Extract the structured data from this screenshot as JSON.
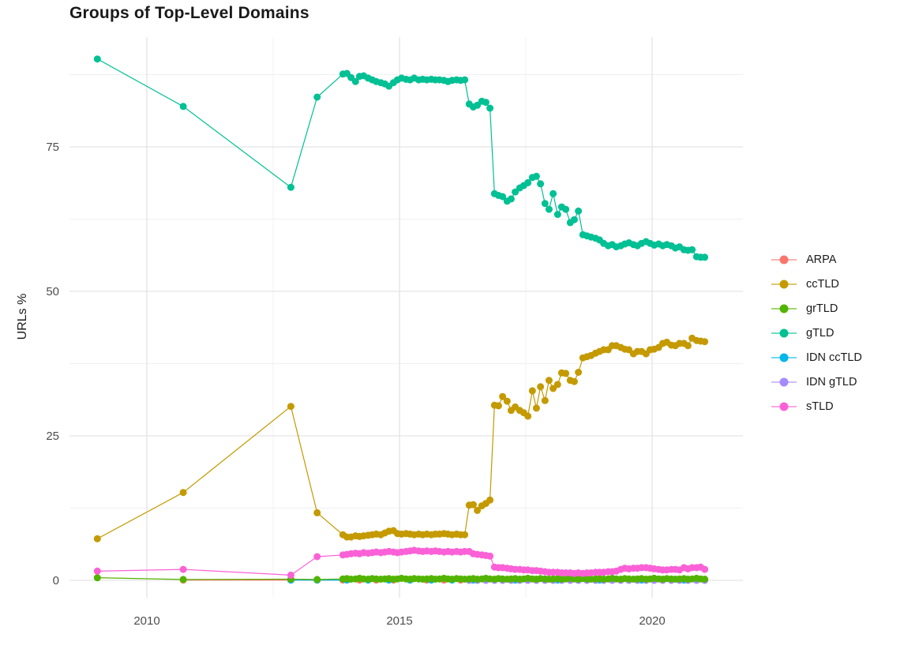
{
  "chart_data": {
    "type": "line",
    "title": "Groups of Top-Level Domains",
    "xlabel": "",
    "ylabel": "URLs %",
    "x_ticks": [
      2010,
      2015,
      2020
    ],
    "x_minor_ticks": [
      2012.5,
      2017.5
    ],
    "y_ticks": [
      0,
      25,
      50,
      75
    ],
    "y_minor_ticks": [
      12.5,
      37.5,
      62.5,
      87.5
    ],
    "xlim": [
      2008.47,
      2021.8
    ],
    "ylim": [
      -3,
      94
    ],
    "grid": true,
    "legend_position": "right",
    "draw_order": [
      "ARPA",
      "IDN ccTLD",
      "IDN gTLD",
      "grTLD",
      "ccTLD",
      "gTLD",
      "sTLD"
    ],
    "x_dense": [
      2013.88,
      2013.96,
      2014.04,
      2014.13,
      2014.21,
      2014.29,
      2014.38,
      2014.46,
      2014.54,
      2014.63,
      2014.71,
      2014.79,
      2014.88,
      2014.96,
      2015.04,
      2015.13,
      2015.21,
      2015.29,
      2015.38,
      2015.46,
      2015.54,
      2015.63,
      2015.71,
      2015.79,
      2015.88,
      2015.96,
      2016.04,
      2016.13,
      2016.21,
      2016.29,
      2016.38,
      2016.46,
      2016.54,
      2016.63,
      2016.71,
      2016.79,
      2016.88,
      2016.96,
      2017.04,
      2017.13,
      2017.21,
      2017.29,
      2017.38,
      2017.46,
      2017.54,
      2017.63,
      2017.71,
      2017.79,
      2017.88,
      2017.96,
      2018.04,
      2018.13,
      2018.21,
      2018.29,
      2018.38,
      2018.46,
      2018.54,
      2018.63,
      2018.71,
      2018.79,
      2018.88,
      2018.96,
      2019.04,
      2019.13,
      2019.21,
      2019.29,
      2019.38,
      2019.46,
      2019.54,
      2019.63,
      2019.71,
      2019.79,
      2019.88,
      2019.96,
      2020.04,
      2020.13,
      2020.21,
      2020.29,
      2020.38,
      2020.46,
      2020.54,
      2020.63,
      2020.71,
      2020.79,
      2020.88,
      2020.96,
      2021.04
    ],
    "series": [
      {
        "name": "ARPA",
        "color": "#F8766D",
        "points": [
          [
            2010.72,
            0.05
          ],
          [
            2012.85,
            0.05
          ],
          [
            2013.37,
            0.05
          ],
          [
            2013.88,
            0.05
          ],
          [
            2014.21,
            0.05
          ],
          [
            2014.54,
            0.05
          ],
          [
            2014.88,
            0.05
          ],
          [
            2015.21,
            0.05
          ],
          [
            2015.54,
            0.05
          ],
          [
            2015.88,
            0.05
          ],
          [
            2016.21,
            0.05
          ]
        ]
      },
      {
        "name": "ccTLD",
        "color": "#C49A00",
        "points": [
          [
            2009.02,
            7.2
          ],
          [
            2010.72,
            15.2
          ],
          [
            2012.85,
            30.1
          ],
          [
            2013.37,
            11.7
          ]
        ],
        "y_dense": [
          7.9,
          7.5,
          7.5,
          7.7,
          7.6,
          7.7,
          7.8,
          7.9,
          8.0,
          7.9,
          8.2,
          8.5,
          8.6,
          8.1,
          8.0,
          8.1,
          8.0,
          7.9,
          8.0,
          7.9,
          8.0,
          7.9,
          8.0,
          8.0,
          8.1,
          8.0,
          7.9,
          8.0,
          7.9,
          7.9,
          13.0,
          13.1,
          12.1,
          12.9,
          13.3,
          13.9,
          30.3,
          30.2,
          31.8,
          31.0,
          29.4,
          30.0,
          29.4,
          29.0,
          28.4,
          32.8,
          29.8,
          33.5,
          31.1,
          34.6,
          33.2,
          33.9,
          35.9,
          35.8,
          34.6,
          34.4,
          36.0,
          38.5,
          38.7,
          38.9,
          39.3,
          39.6,
          39.9,
          39.9,
          40.6,
          40.6,
          40.3,
          40.0,
          39.9,
          39.2,
          39.6,
          39.6,
          39.2,
          39.9,
          40.0,
          40.3,
          41.0,
          41.2,
          40.7,
          40.6,
          41.0,
          41.0,
          40.6,
          41.9,
          41.5,
          41.4,
          41.3
        ]
      },
      {
        "name": "grTLD",
        "color": "#53B400",
        "points": [
          [
            2009.02,
            0.45
          ],
          [
            2010.72,
            0.15
          ],
          [
            2012.85,
            0.2
          ],
          [
            2013.37,
            0.15
          ]
        ],
        "y_dense": [
          0.25,
          0.3,
          0.2,
          0.25,
          0.35,
          0.25,
          0.2,
          0.3,
          0.25,
          0.2,
          0.25,
          0.3,
          0.2,
          0.25,
          0.35,
          0.25,
          0.2,
          0.3,
          0.25,
          0.2,
          0.25,
          0.3,
          0.2,
          0.25,
          0.35,
          0.25,
          0.2,
          0.3,
          0.25,
          0.2,
          0.25,
          0.3,
          0.2,
          0.25,
          0.35,
          0.25,
          0.2,
          0.3,
          0.25,
          0.2,
          0.25,
          0.3,
          0.2,
          0.25,
          0.35,
          0.25,
          0.2,
          0.3,
          0.25,
          0.2,
          0.25,
          0.3,
          0.2,
          0.25,
          0.35,
          0.25,
          0.2,
          0.3,
          0.25,
          0.2,
          0.25,
          0.3,
          0.2,
          0.25,
          0.35,
          0.25,
          0.2,
          0.3,
          0.25,
          0.2,
          0.25,
          0.3,
          0.2,
          0.25,
          0.35,
          0.25,
          0.2,
          0.3,
          0.25,
          0.2,
          0.25,
          0.3,
          0.2,
          0.25,
          0.35,
          0.25,
          0.2
        ]
      },
      {
        "name": "gTLD",
        "color": "#00C094",
        "points": [
          [
            2009.02,
            90.2
          ],
          [
            2010.72,
            82.0
          ],
          [
            2012.85,
            68.0
          ],
          [
            2013.37,
            83.6
          ]
        ],
        "y_dense": [
          87.6,
          87.7,
          87.0,
          86.3,
          87.2,
          87.3,
          86.9,
          86.6,
          86.3,
          86.1,
          85.9,
          85.5,
          86.1,
          86.6,
          86.9,
          86.7,
          86.6,
          86.9,
          86.6,
          86.7,
          86.6,
          86.7,
          86.6,
          86.6,
          86.5,
          86.3,
          86.5,
          86.6,
          86.5,
          86.6,
          82.4,
          81.9,
          82.2,
          82.9,
          82.7,
          81.7,
          66.9,
          66.6,
          66.4,
          65.6,
          66.0,
          67.2,
          67.9,
          68.3,
          68.8,
          69.7,
          69.9,
          68.6,
          65.2,
          64.2,
          66.9,
          63.3,
          64.6,
          64.2,
          61.9,
          62.4,
          63.9,
          59.8,
          59.6,
          59.4,
          59.2,
          58.9,
          58.3,
          57.9,
          58.1,
          57.7,
          57.9,
          58.2,
          58.4,
          58.1,
          57.9,
          58.3,
          58.6,
          58.3,
          58.0,
          58.2,
          57.9,
          58.1,
          57.9,
          57.5,
          57.7,
          57.2,
          57.1,
          57.2,
          56.0,
          55.9,
          55.9,
          56.3,
          56.2
        ]
      },
      {
        "name": "IDN ccTLD",
        "color": "#00B6EB",
        "points": [
          [
            2012.85,
            0.05
          ],
          [
            2013.37,
            0.05
          ],
          [
            2013.96,
            0.05
          ],
          [
            2014.38,
            0.05
          ],
          [
            2014.79,
            0.05
          ],
          [
            2015.21,
            0.05
          ],
          [
            2015.63,
            0.05
          ],
          [
            2016.04,
            0.05
          ],
          [
            2016.46,
            0.05
          ],
          [
            2016.88,
            0.05
          ],
          [
            2017.29,
            0.05
          ],
          [
            2017.71,
            0.05
          ],
          [
            2018.13,
            0.05
          ],
          [
            2018.54,
            0.05
          ],
          [
            2018.96,
            0.05
          ],
          [
            2019.38,
            0.05
          ],
          [
            2019.79,
            0.05
          ],
          [
            2020.21,
            0.05
          ],
          [
            2020.63,
            0.05
          ],
          [
            2021.04,
            0.05
          ]
        ]
      },
      {
        "name": "IDN gTLD",
        "color": "#A58AFF",
        "points": [
          [
            2016.38,
            0.0
          ],
          [
            2016.54,
            0.0
          ],
          [
            2016.71,
            0.0
          ],
          [
            2016.88,
            0.0
          ],
          [
            2017.04,
            0.0
          ],
          [
            2017.21,
            0.0
          ],
          [
            2017.38,
            0.0
          ],
          [
            2017.54,
            0.0
          ],
          [
            2017.71,
            0.0
          ],
          [
            2017.88,
            0.0
          ],
          [
            2018.04,
            0.0
          ],
          [
            2018.21,
            0.0
          ],
          [
            2018.38,
            0.0
          ],
          [
            2018.54,
            0.0
          ],
          [
            2018.71,
            0.0
          ],
          [
            2018.88,
            0.0
          ],
          [
            2019.04,
            0.0
          ],
          [
            2019.21,
            0.0
          ],
          [
            2019.38,
            0.0
          ],
          [
            2019.54,
            0.0
          ],
          [
            2019.71,
            0.0
          ],
          [
            2019.88,
            0.0
          ],
          [
            2020.04,
            0.0
          ],
          [
            2020.21,
            0.0
          ],
          [
            2020.38,
            0.0
          ],
          [
            2020.54,
            0.0
          ],
          [
            2020.71,
            0.0
          ],
          [
            2020.88,
            0.0
          ],
          [
            2021.04,
            0.0
          ]
        ]
      },
      {
        "name": "sTLD",
        "color": "#FB61D7",
        "points": [
          [
            2009.02,
            1.6
          ],
          [
            2010.72,
            1.9
          ],
          [
            2012.85,
            0.9
          ],
          [
            2013.37,
            4.1
          ]
        ],
        "y_dense": [
          4.4,
          4.5,
          4.6,
          4.7,
          4.6,
          4.8,
          4.7,
          4.8,
          4.9,
          4.8,
          4.9,
          5.0,
          4.9,
          4.8,
          4.9,
          5.0,
          5.1,
          5.2,
          5.1,
          5.0,
          5.1,
          5.0,
          5.1,
          5.0,
          4.9,
          5.0,
          4.9,
          5.0,
          4.9,
          5.0,
          5.0,
          4.6,
          4.5,
          4.4,
          4.3,
          4.2,
          2.3,
          2.2,
          2.2,
          2.1,
          2.0,
          1.9,
          1.9,
          1.8,
          1.8,
          1.7,
          1.7,
          1.6,
          1.5,
          1.4,
          1.4,
          1.4,
          1.3,
          1.3,
          1.3,
          1.2,
          1.3,
          1.2,
          1.3,
          1.3,
          1.4,
          1.4,
          1.4,
          1.5,
          1.5,
          1.6,
          1.9,
          2.1,
          2.0,
          2.1,
          2.1,
          2.2,
          2.2,
          2.1,
          2.0,
          1.9,
          1.8,
          1.8,
          1.9,
          1.9,
          1.8,
          2.2,
          2.0,
          2.2,
          2.2,
          2.3,
          1.9
        ]
      }
    ],
    "style": {
      "grid_major_color": "#e3e3e3",
      "grid_minor_color": "#f0f0f0",
      "tick_label_color": "#4d4d4d",
      "title_color": "#1a1a1a",
      "background": "#ffffff"
    }
  }
}
